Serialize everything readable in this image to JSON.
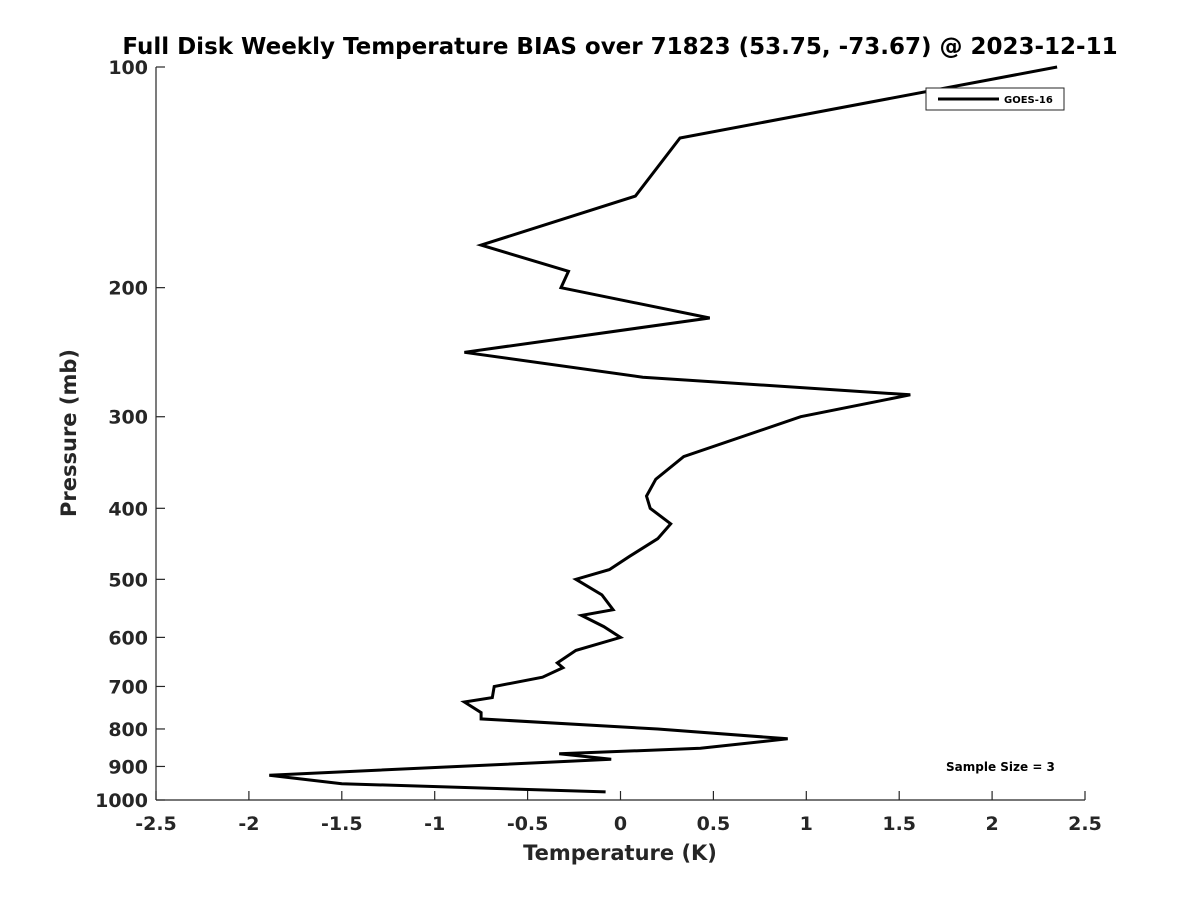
{
  "chart_data": {
    "type": "line",
    "title": "Full Disk Weekly Temperature BIAS over 71823 (53.75, -73.67) @ 2023-12-11",
    "xlabel": "Temperature (K)",
    "ylabel": "Pressure (mb)",
    "xlim": [
      -2.5,
      2.5
    ],
    "ylim": [
      1000,
      100
    ],
    "y_scale": "log",
    "y_reversed": true,
    "x_ticks": [
      "-2.5",
      "-2",
      "-1.5",
      "-1",
      "-0.5",
      "0",
      "0.5",
      "1",
      "1.5",
      "2",
      "2.5"
    ],
    "x_tick_values": [
      -2.5,
      -2,
      -1.5,
      -1,
      -0.5,
      0,
      0.5,
      1,
      1.5,
      2,
      2.5
    ],
    "y_ticks": [
      "100",
      "200",
      "300",
      "400",
      "500",
      "600",
      "700",
      "800",
      "900",
      "1000"
    ],
    "y_tick_values": [
      100,
      200,
      300,
      400,
      500,
      600,
      700,
      800,
      900,
      1000
    ],
    "grid": false,
    "legend_position": "top-right",
    "annotation": "Sample Size = 3",
    "series": [
      {
        "name": "GOES-16",
        "color": "#000000",
        "points": [
          {
            "x": 2.35,
            "p": 100
          },
          {
            "x": 0.32,
            "p": 125
          },
          {
            "x": 0.08,
            "p": 150
          },
          {
            "x": -0.75,
            "p": 175
          },
          {
            "x": -0.28,
            "p": 190
          },
          {
            "x": -0.32,
            "p": 200
          },
          {
            "x": 0.48,
            "p": 220
          },
          {
            "x": -0.84,
            "p": 245
          },
          {
            "x": 0.12,
            "p": 265
          },
          {
            "x": 1.56,
            "p": 280
          },
          {
            "x": 0.97,
            "p": 300
          },
          {
            "x": 0.34,
            "p": 340
          },
          {
            "x": 0.19,
            "p": 365
          },
          {
            "x": 0.14,
            "p": 385
          },
          {
            "x": 0.16,
            "p": 400
          },
          {
            "x": 0.27,
            "p": 420
          },
          {
            "x": 0.2,
            "p": 440
          },
          {
            "x": 0.05,
            "p": 465
          },
          {
            "x": -0.06,
            "p": 485
          },
          {
            "x": -0.24,
            "p": 500
          },
          {
            "x": -0.1,
            "p": 525
          },
          {
            "x": -0.04,
            "p": 550
          },
          {
            "x": -0.21,
            "p": 560
          },
          {
            "x": -0.09,
            "p": 580
          },
          {
            "x": 0.0,
            "p": 600
          },
          {
            "x": -0.24,
            "p": 625
          },
          {
            "x": -0.34,
            "p": 650
          },
          {
            "x": -0.31,
            "p": 660
          },
          {
            "x": -0.42,
            "p": 680
          },
          {
            "x": -0.68,
            "p": 700
          },
          {
            "x": -0.69,
            "p": 725
          },
          {
            "x": -0.84,
            "p": 735
          },
          {
            "x": -0.75,
            "p": 760
          },
          {
            "x": -0.75,
            "p": 775
          },
          {
            "x": 0.2,
            "p": 800
          },
          {
            "x": 0.9,
            "p": 825
          },
          {
            "x": 0.43,
            "p": 850
          },
          {
            "x": -0.33,
            "p": 865
          },
          {
            "x": -0.05,
            "p": 880
          },
          {
            "x": -0.88,
            "p": 900
          },
          {
            "x": -1.89,
            "p": 925
          },
          {
            "x": -1.5,
            "p": 950
          },
          {
            "x": -0.08,
            "p": 975
          }
        ]
      }
    ]
  }
}
